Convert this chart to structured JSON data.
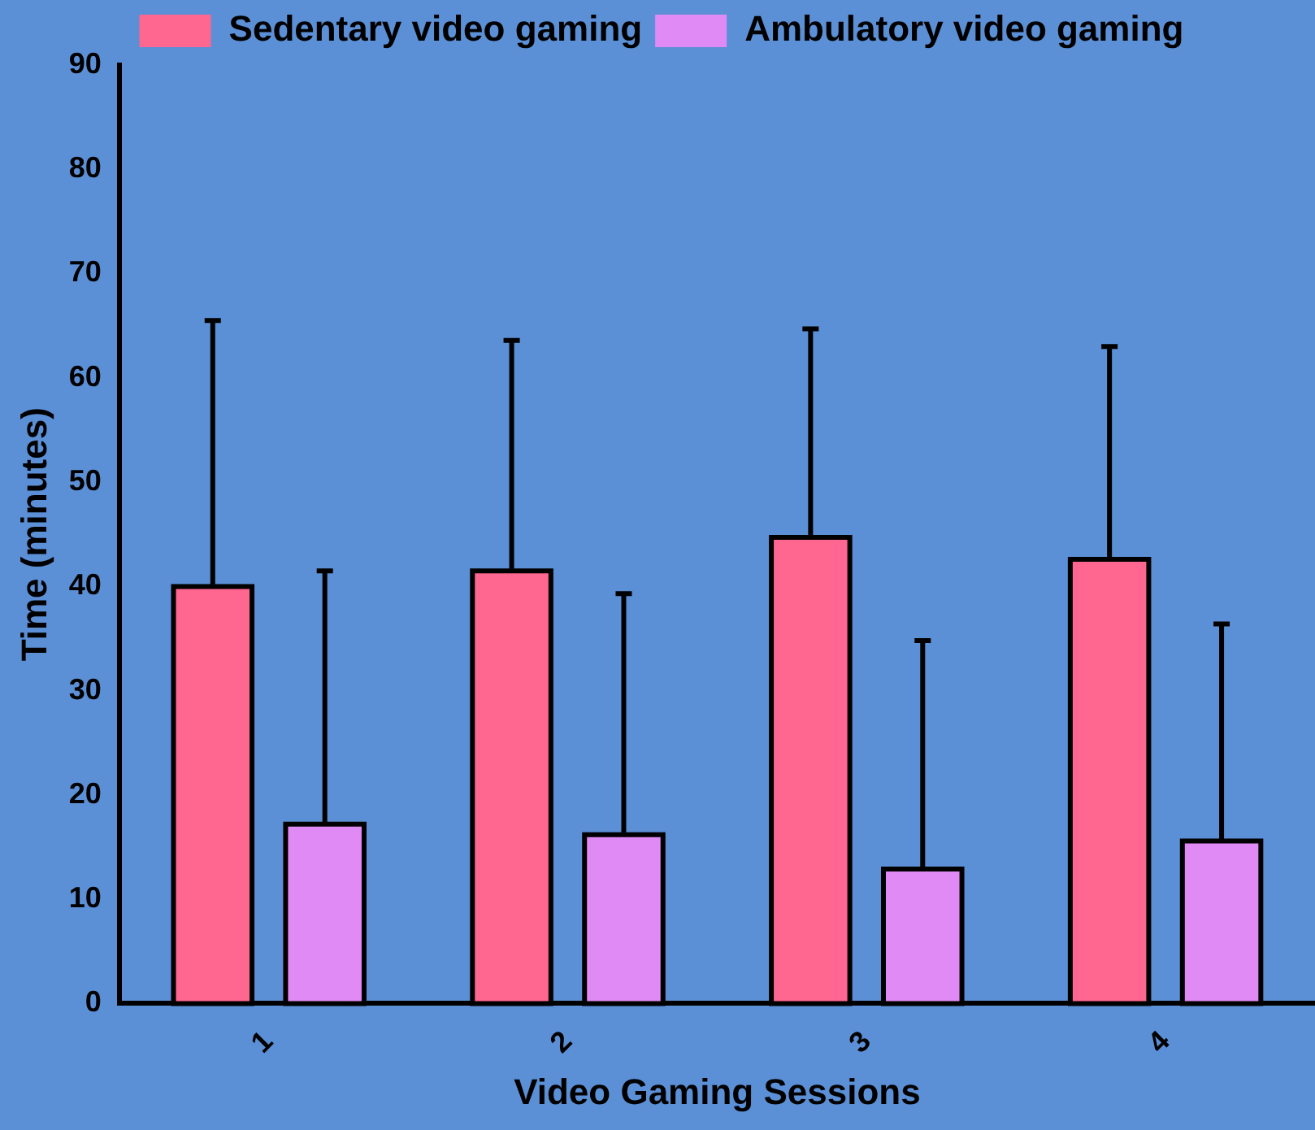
{
  "chart_data": {
    "type": "bar",
    "xlabel": "Video Gaming Sessions",
    "ylabel": "Time (minutes)",
    "categories": [
      "1",
      "2",
      "3",
      "4"
    ],
    "series": [
      {
        "name": "Sedentary video gaming",
        "color": "#ff6690",
        "values": [
          40,
          41.5,
          44.7,
          42.6
        ],
        "errors": [
          [
            40,
            65.5
          ],
          [
            41.5,
            63.6
          ],
          [
            44.7,
            64.7
          ],
          [
            42.6,
            63
          ]
        ]
      },
      {
        "name": "Ambulatory video gaming",
        "color": "#e08af5",
        "values": [
          17.2,
          16.2,
          12.9,
          15.6
        ],
        "errors": [
          [
            17.2,
            41.5
          ],
          [
            16.2,
            39.3
          ],
          [
            12.9,
            34.8
          ],
          [
            15.6,
            36.4
          ]
        ]
      }
    ],
    "ylim": [
      0,
      90
    ],
    "yticks": [
      0,
      10,
      20,
      30,
      40,
      50,
      60,
      70,
      80,
      90
    ],
    "grid": false,
    "legend": "top"
  }
}
